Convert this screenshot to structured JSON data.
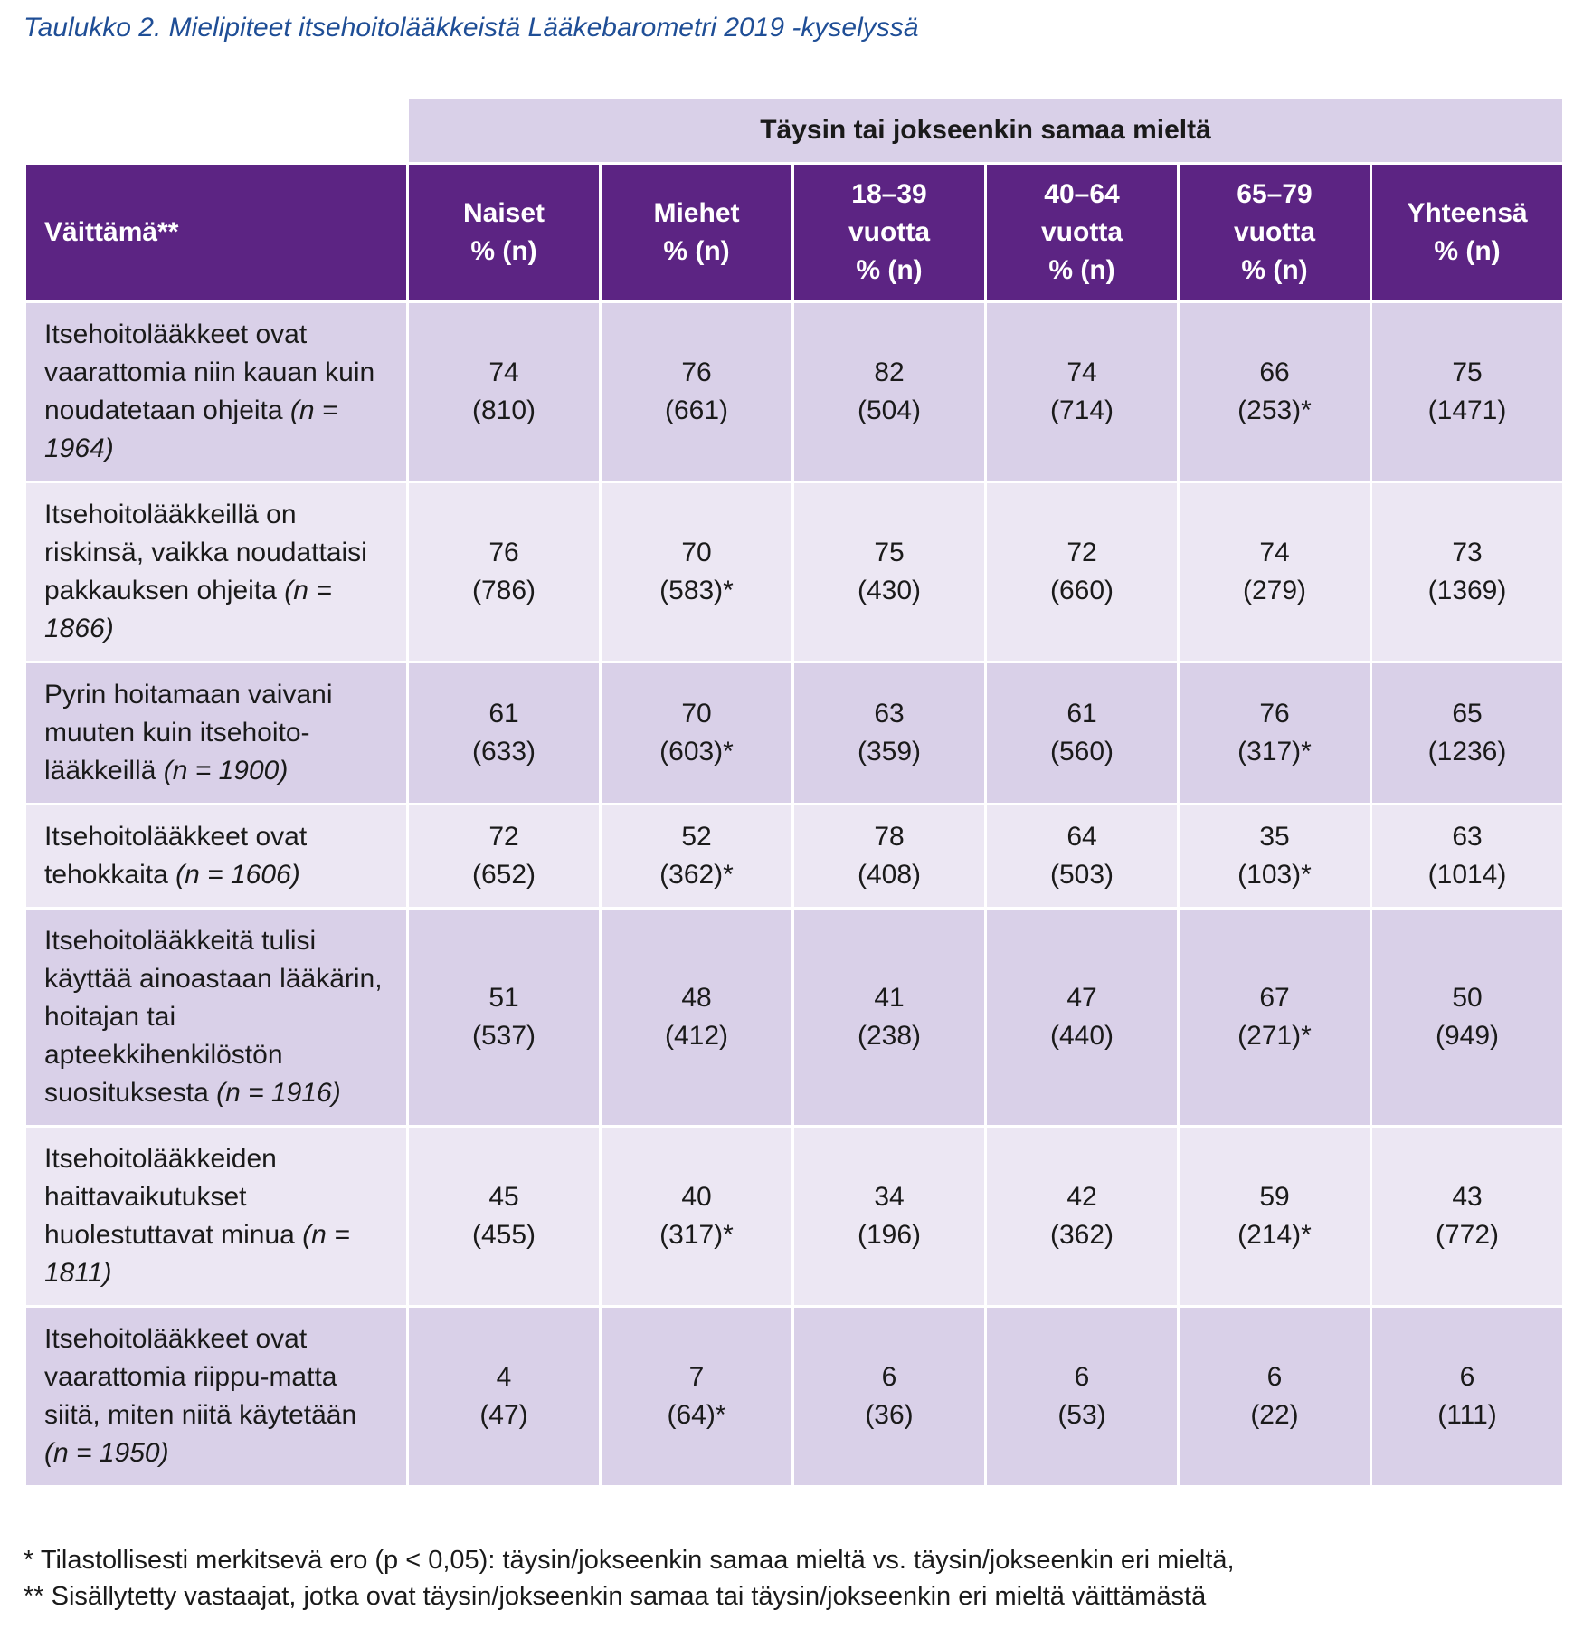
{
  "caption": "Taulukko 2. Mielipiteet itsehoitolääkkeistä Lääkebarometri 2019 -kyselyssä",
  "group_header": "Täysin tai jokseenkin samaa mieltä",
  "columns": {
    "statement": "Väittämä**",
    "naiset": [
      "Naiset",
      "% (n)"
    ],
    "miehet": [
      "Miehet",
      "% (n)"
    ],
    "age1": [
      "18–39",
      "vuotta",
      "% (n)"
    ],
    "age2": [
      "40–64",
      "vuotta",
      "% (n)"
    ],
    "age3": [
      "65–79",
      "vuotta",
      "% (n)"
    ],
    "total": [
      "Yhteensä",
      "% (n)"
    ]
  },
  "rows": [
    {
      "statement": "Itsehoitolääkkeet ovat vaarattomia niin kauan kuin noudatetaan ohjeita",
      "n": "(n = 1964)",
      "values": [
        [
          "74",
          "(810)"
        ],
        [
          "76",
          "(661)"
        ],
        [
          "82",
          "(504)"
        ],
        [
          "74",
          "(714)"
        ],
        [
          "66",
          "(253)*"
        ],
        [
          "75",
          "(1471)"
        ]
      ]
    },
    {
      "statement": "Itsehoitolääkkeillä on riskinsä, vaikka noudattaisi pakkauksen ohjeita",
      "n": "(n = 1866)",
      "values": [
        [
          "76",
          "(786)"
        ],
        [
          "70",
          "(583)*"
        ],
        [
          "75",
          "(430)"
        ],
        [
          "72",
          "(660)"
        ],
        [
          "74",
          "(279)"
        ],
        [
          "73",
          "(1369)"
        ]
      ]
    },
    {
      "statement": "Pyrin hoitamaan vaivani muuten kuin itsehoito-lääkkeillä",
      "n": "(n = 1900)",
      "values": [
        [
          "61",
          "(633)"
        ],
        [
          "70",
          "(603)*"
        ],
        [
          "63",
          "(359)"
        ],
        [
          "61",
          "(560)"
        ],
        [
          "76",
          "(317)*"
        ],
        [
          "65",
          "(1236)"
        ]
      ]
    },
    {
      "statement": "Itsehoitolääkkeet ovat tehokkaita",
      "n": "(n = 1606)",
      "values": [
        [
          "72",
          "(652)"
        ],
        [
          "52",
          "(362)*"
        ],
        [
          "78",
          "(408)"
        ],
        [
          "64",
          "(503)"
        ],
        [
          "35",
          "(103)*"
        ],
        [
          "63",
          "(1014)"
        ]
      ]
    },
    {
      "statement": "Itsehoitolääkkeitä tulisi käyttää ainoastaan lääkärin, hoitajan tai apteekkihenkilöstön suosituksesta",
      "n": "(n = 1916)",
      "values": [
        [
          "51",
          "(537)"
        ],
        [
          "48",
          "(412)"
        ],
        [
          "41",
          "(238)"
        ],
        [
          "47",
          "(440)"
        ],
        [
          "67",
          "(271)*"
        ],
        [
          "50",
          "(949)"
        ]
      ]
    },
    {
      "statement": "Itsehoitolääkkeiden haittavaikutukset huolestuttavat minua",
      "n": "(n = 1811)",
      "values": [
        [
          "45",
          "(455)"
        ],
        [
          "40",
          "(317)*"
        ],
        [
          "34",
          "(196)"
        ],
        [
          "42",
          "(362)"
        ],
        [
          "59",
          "(214)*"
        ],
        [
          "43",
          "(772)"
        ]
      ]
    },
    {
      "statement": "Itsehoitolääkkeet ovat vaarattomia riippu-matta siitä, miten niitä käytetään",
      "n": "(n = 1950)",
      "values": [
        [
          "4",
          "(47)"
        ],
        [
          "7",
          "(64)*"
        ],
        [
          "6",
          "(36)"
        ],
        [
          "6",
          "(53)"
        ],
        [
          "6",
          "(22)"
        ],
        [
          "6",
          "(111)"
        ]
      ]
    }
  ],
  "footnotes": [
    "* Tilastollisesti merkitsevä ero (p < 0,05): täysin/jokseenkin samaa mieltä vs. täysin/jokseenkin eri mieltä,",
    "** Sisällytetty vastaajat, jotka ovat täysin/jokseenkin samaa tai täysin/jokseenkin eri mieltä väittämästä"
  ]
}
